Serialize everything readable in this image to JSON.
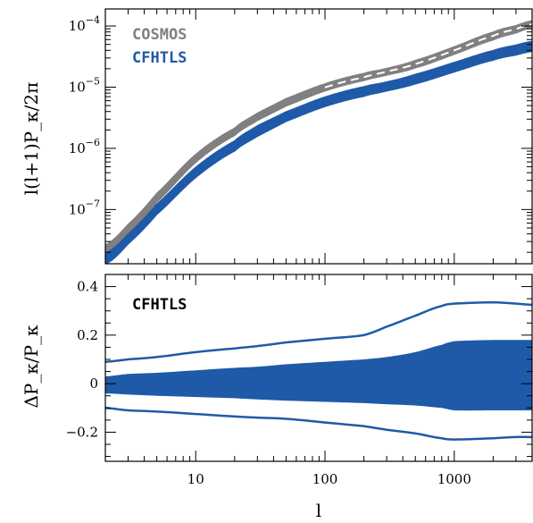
{
  "chart_data": [
    {
      "type": "line",
      "panel": "top",
      "xscale": "log",
      "yscale": "log",
      "xlim": [
        2,
        4000
      ],
      "ylim": [
        1.3e-08,
        0.00019
      ],
      "ylabel": "l(l+1)P_κ/2π",
      "ytick_values": [
        1e-07,
        1e-06,
        1e-05,
        0.0001
      ],
      "ytick_labels": [
        "10^-7",
        "10^-6",
        "10^-5",
        "10^-4"
      ],
      "legend": {
        "position": "top-left",
        "entries": [
          {
            "label": "COSMOS",
            "color": "#808080"
          },
          {
            "label": "CFHTLS",
            "color": "#1f5aa8"
          }
        ]
      },
      "x": [
        2,
        3,
        5,
        10,
        20,
        30,
        50,
        100,
        200,
        300,
        500,
        1000,
        2000,
        3000,
        4000
      ],
      "series": [
        {
          "group": "COSMOS",
          "color": "#808080",
          "band_upper": [
            2.6e-08,
            5.6e-08,
            1.8e-07,
            7.8e-07,
            2.1e-06,
            3.7e-06,
            6.4e-06,
            1.12e-05,
            1.65e-05,
            2e-05,
            2.7e-05,
            4.5e-05,
            7.8e-05,
            0.0001,
            0.00012
          ],
          "band_lower": [
            1.9e-08,
            4.2e-08,
            1.35e-07,
            6e-07,
            1.65e-06,
            2.9e-06,
            5e-06,
            8.8e-06,
            1.3e-05,
            1.6e-05,
            2.1e-05,
            3.5e-05,
            6e-05,
            7.8e-05,
            9.5e-05
          ],
          "mean": [
            2.2e-08,
            4.9e-08,
            1.55e-07,
            6.8e-07,
            1.85e-06,
            3.3e-06,
            5.6e-06,
            9.9e-06,
            1.45e-05,
            1.8e-05,
            2.4e-05,
            4e-05,
            6.9e-05,
            8.9e-05,
            0.000107
          ]
        },
        {
          "group": "CFHTLS",
          "color": "#1f5aa8",
          "band_upper": [
            1.9e-08,
            3.9e-08,
            1.2e-07,
            4.8e-07,
            1.3e-06,
            2.3e-06,
            3.9e-06,
            6.8e-06,
            1e-05,
            1.2e-05,
            1.6e-05,
            2.5e-05,
            3.9e-05,
            4.8e-05,
            5.5e-05
          ],
          "band_lower": [
            1.3e-08,
            2.8e-08,
            8.5e-08,
            3.4e-07,
            9.2e-07,
            1.6e-06,
            2.8e-06,
            4.9e-06,
            7.2e-06,
            8.8e-06,
            1.15e-05,
            1.8e-05,
            2.8e-05,
            3.4e-05,
            3.9e-05
          ],
          "mean": [
            1.6e-08,
            3.3e-08,
            1e-07,
            4.1e-07,
            1.1e-06,
            1.9e-06,
            3.3e-06,
            5.8e-06,
            8.5e-06,
            1.03e-05,
            1.35e-05,
            2.1e-05,
            3.3e-05,
            4.05e-05,
            4.6e-05
          ]
        }
      ]
    },
    {
      "type": "area",
      "panel": "bottom",
      "xscale": "log",
      "xlim": [
        2,
        4000
      ],
      "ylim": [
        -0.32,
        0.45
      ],
      "xlabel": "l",
      "ylabel": "ΔP_κ/P_κ",
      "annotation": "CFHTLS",
      "ytick_values": [
        -0.2,
        0,
        0.2,
        0.4
      ],
      "ytick_labels": [
        "−0.2",
        "0",
        "0.2",
        "0.4"
      ],
      "xtick_values": [
        10,
        100,
        1000
      ],
      "xtick_labels": [
        "10",
        "100",
        "1000"
      ],
      "color": "#1f5aa8",
      "x": [
        2,
        3,
        5,
        10,
        20,
        30,
        50,
        100,
        200,
        300,
        500,
        800,
        1000,
        2000,
        3000,
        4000
      ],
      "band_upper": [
        0.03,
        0.04,
        0.045,
        0.055,
        0.065,
        0.07,
        0.08,
        0.09,
        0.1,
        0.11,
        0.13,
        0.16,
        0.175,
        0.18,
        0.18,
        0.18
      ],
      "band_lower": [
        -0.04,
        -0.045,
        -0.05,
        -0.055,
        -0.06,
        -0.065,
        -0.07,
        -0.075,
        -0.08,
        -0.085,
        -0.09,
        -0.1,
        -0.11,
        -0.11,
        -0.11,
        -0.11
      ],
      "outer_upper": [
        0.09,
        0.1,
        0.11,
        0.13,
        0.145,
        0.155,
        0.17,
        0.185,
        0.2,
        0.235,
        0.28,
        0.32,
        0.33,
        0.335,
        0.33,
        0.325
      ],
      "outer_lower": [
        -0.1,
        -0.11,
        -0.115,
        -0.125,
        -0.135,
        -0.14,
        -0.145,
        -0.16,
        -0.175,
        -0.19,
        -0.205,
        -0.225,
        -0.23,
        -0.225,
        -0.22,
        -0.22
      ]
    }
  ]
}
